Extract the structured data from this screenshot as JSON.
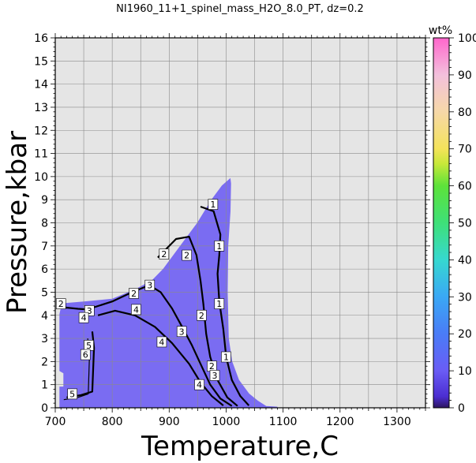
{
  "chart_data": {
    "type": "heatmap",
    "title": "NI1960_11+1_spinel_mass_H2O_8.0_PT, dz=0.2",
    "xlabel": "Temperature,C",
    "ylabel": "Pressure,kbar",
    "xlim": [
      700,
      1350
    ],
    "ylim": [
      0,
      16
    ],
    "x_ticks": [
      "700",
      "800",
      "900",
      "1000",
      "1100",
      "1200",
      "1300"
    ],
    "y_ticks": [
      "0",
      "1",
      "2",
      "3",
      "4",
      "5",
      "6",
      "7",
      "8",
      "9",
      "10",
      "11",
      "12",
      "13",
      "14",
      "15",
      "16"
    ],
    "grid": true,
    "background_color": "#e5e5e5",
    "field_color": "#7a6cf2",
    "colorbar": {
      "unit": "wt%",
      "range": [
        0,
        100
      ],
      "ticks": [
        "0",
        "10",
        "20",
        "30",
        "40",
        "50",
        "60",
        "70",
        "80",
        "90",
        "100"
      ],
      "stops": [
        {
          "v": 0,
          "c": "#2d1560"
        },
        {
          "v": 3,
          "c": "#4b2dd1"
        },
        {
          "v": 10,
          "c": "#6a5cf5"
        },
        {
          "v": 20,
          "c": "#4a7cf7"
        },
        {
          "v": 30,
          "c": "#3aa8f5"
        },
        {
          "v": 40,
          "c": "#36d8d0"
        },
        {
          "v": 50,
          "c": "#3ee078"
        },
        {
          "v": 60,
          "c": "#5de23a"
        },
        {
          "v": 66,
          "c": "#c8e83a"
        },
        {
          "v": 70,
          "c": "#f4e35a"
        },
        {
          "v": 80,
          "c": "#f6d8a8"
        },
        {
          "v": 90,
          "c": "#f3c0dc"
        },
        {
          "v": 100,
          "c": "#ff66cc"
        }
      ]
    },
    "field_boundary": [
      [
        708,
        0.03
      ],
      [
        708,
        0.9
      ],
      [
        715,
        0.9
      ],
      [
        715,
        1.5
      ],
      [
        708,
        1.6
      ],
      [
        708,
        4.05
      ],
      [
        712,
        4.5
      ],
      [
        758,
        4.6
      ],
      [
        800,
        4.7
      ],
      [
        840,
        5.1
      ],
      [
        870,
        5.5
      ],
      [
        890,
        6.0
      ],
      [
        920,
        7.0
      ],
      [
        950,
        8.0
      ],
      [
        975,
        9.0
      ],
      [
        993,
        9.6
      ],
      [
        1007,
        9.9
      ],
      [
        1008,
        9.7
      ],
      [
        1007,
        8.5
      ],
      [
        1003,
        7.0
      ],
      [
        1002,
        5.0
      ],
      [
        1004,
        3.0
      ],
      [
        1010,
        2.0
      ],
      [
        1022,
        1.2
      ],
      [
        1040,
        0.6
      ],
      [
        1055,
        0.3
      ],
      [
        1070,
        0.06
      ],
      [
        1090,
        0.03
      ]
    ],
    "contours": [
      {
        "level": "1",
        "bold": true,
        "points": [
          [
            955,
            8.7
          ],
          [
            978,
            8.5
          ],
          [
            990,
            7.5
          ],
          [
            988,
            6.6
          ],
          [
            985,
            5.8
          ],
          [
            988,
            4.6
          ],
          [
            995,
            3.4
          ],
          [
            1000,
            2.2
          ],
          [
            1010,
            1.2
          ],
          [
            1025,
            0.5
          ],
          [
            1040,
            0.1
          ]
        ]
      },
      {
        "level": "2",
        "bold": true,
        "points": [
          [
            880,
            6.5
          ],
          [
            912,
            7.3
          ],
          [
            935,
            7.4
          ],
          [
            948,
            6.6
          ],
          [
            955,
            5.5
          ],
          [
            960,
            4.5
          ],
          [
            965,
            3.2
          ],
          [
            972,
            2.2
          ],
          [
            985,
            1.2
          ],
          [
            1002,
            0.45
          ],
          [
            1020,
            0.08
          ]
        ]
      },
      {
        "level": "3",
        "bold": true,
        "points": [
          [
            762,
            4.3
          ],
          [
            800,
            4.6
          ],
          [
            835,
            5.0
          ],
          [
            865,
            5.3
          ],
          [
            885,
            5.0
          ],
          [
            905,
            4.3
          ],
          [
            925,
            3.4
          ],
          [
            940,
            2.7
          ],
          [
            955,
            1.9
          ],
          [
            972,
            1.0
          ],
          [
            990,
            0.4
          ],
          [
            1010,
            0.08
          ]
        ]
      },
      {
        "level": "4",
        "bold": true,
        "points": [
          [
            775,
            4.0
          ],
          [
            805,
            4.2
          ],
          [
            840,
            4.0
          ],
          [
            875,
            3.5
          ],
          [
            905,
            2.8
          ],
          [
            935,
            1.9
          ],
          [
            955,
            1.1
          ],
          [
            975,
            0.5
          ],
          [
            995,
            0.1
          ]
        ]
      },
      {
        "level": "2",
        "bold": true,
        "points": [
          [
            712,
            4.35
          ],
          [
            740,
            4.28
          ],
          [
            758,
            4.25
          ]
        ]
      },
      {
        "level": "5",
        "bold": true,
        "points": [
          [
            720,
            0.45
          ],
          [
            745,
            0.55
          ],
          [
            765,
            0.7
          ],
          [
            768,
            2.6
          ],
          [
            765,
            3.3
          ]
        ]
      },
      {
        "level": "6",
        "bold": false,
        "points": [
          [
            715,
            0.35
          ],
          [
            740,
            0.45
          ],
          [
            758,
            0.6
          ],
          [
            760,
            2.2
          ],
          [
            757,
            3.0
          ]
        ]
      }
    ],
    "contour_labels": [
      {
        "text": "1",
        "x": 977,
        "y": 8.8
      },
      {
        "text": "1",
        "x": 988,
        "y": 7.0
      },
      {
        "text": "1",
        "x": 988,
        "y": 4.5
      },
      {
        "text": "1",
        "x": 1000,
        "y": 2.2
      },
      {
        "text": "2",
        "x": 891,
        "y": 6.65
      },
      {
        "text": "2",
        "x": 931,
        "y": 6.6
      },
      {
        "text": "2",
        "x": 957,
        "y": 4.0
      },
      {
        "text": "2",
        "x": 975,
        "y": 1.8
      },
      {
        "text": "3",
        "x": 866,
        "y": 5.3
      },
      {
        "text": "3",
        "x": 922,
        "y": 3.3
      },
      {
        "text": "3",
        "x": 980,
        "y": 1.4
      },
      {
        "text": "3",
        "x": 760,
        "y": 4.2
      },
      {
        "text": "4",
        "x": 842,
        "y": 4.25
      },
      {
        "text": "4",
        "x": 887,
        "y": 2.85
      },
      {
        "text": "4",
        "x": 953,
        "y": 1.0
      },
      {
        "text": "4",
        "x": 750,
        "y": 3.9
      },
      {
        "text": "2",
        "x": 710,
        "y": 4.5
      },
      {
        "text": "2",
        "x": 838,
        "y": 4.95
      },
      {
        "text": "5",
        "x": 759,
        "y": 2.7
      },
      {
        "text": "6",
        "x": 753,
        "y": 2.3
      },
      {
        "text": "5",
        "x": 730,
        "y": 0.6
      }
    ]
  }
}
